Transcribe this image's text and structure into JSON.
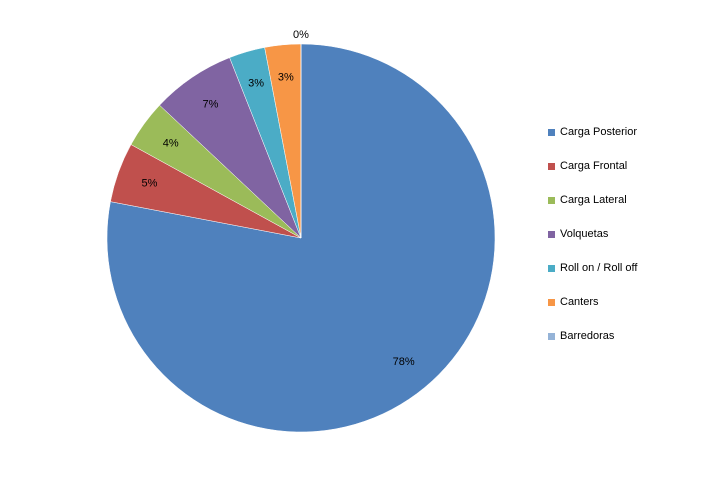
{
  "chart_data": {
    "type": "pie",
    "categories": [
      "Carga Posterior",
      "Carga Frontal",
      "Carga Lateral",
      "Volquetas",
      "Roll on / Roll off",
      "Canters",
      "Barredoras"
    ],
    "values": [
      78,
      5,
      4,
      7,
      3,
      3,
      0
    ],
    "value_labels": [
      "78%",
      "5%",
      "4%",
      "7%",
      "3%",
      "3%",
      "0%"
    ],
    "colors": [
      "#4f81bd",
      "#c0504d",
      "#9bbb59",
      "#8064a2",
      "#4bacc6",
      "#f79646",
      "#95b3d7"
    ],
    "legend": "right"
  }
}
